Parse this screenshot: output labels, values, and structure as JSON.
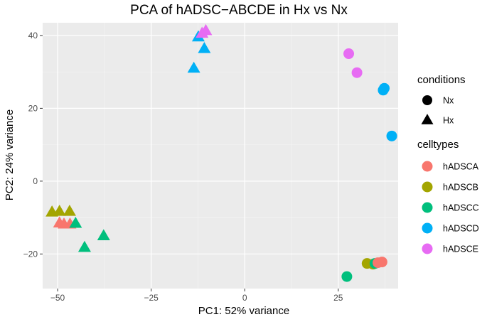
{
  "colors": {
    "panel": "#ebebeb",
    "grid_major": "#ffffff",
    "grid_minor": "#f6f6f6",
    "tick": "#333333",
    "legend_shape": "#000000"
  },
  "chart_data": {
    "type": "scatter",
    "title": "PCA of hADSC−ABCDE in Hx vs Nx",
    "xlabel": "PC1: 52% variance",
    "ylabel": "PC2: 24% variance",
    "xlim": [
      -54,
      41
    ],
    "ylim": [
      -29.5,
      43.5
    ],
    "xticks": [
      -50,
      -25,
      0,
      25
    ],
    "xtick_labels": [
      "−50",
      "−25",
      "0",
      "25"
    ],
    "yticks": [
      -20,
      0,
      20,
      40
    ],
    "ytick_labels": [
      "−20",
      "0",
      "20",
      "40"
    ],
    "legend_shape": {
      "title": "conditions",
      "entries": [
        {
          "label": "Nx",
          "shape": "circle"
        },
        {
          "label": "Hx",
          "shape": "triangle"
        }
      ]
    },
    "legend_color": {
      "title": "celltypes",
      "entries": [
        {
          "label": "hADSCA",
          "color": "#F8766D"
        },
        {
          "label": "hADSCB",
          "color": "#A3A500"
        },
        {
          "label": "hADSCC",
          "color": "#00BF7D"
        },
        {
          "label": "hADSCD",
          "color": "#00B0F6"
        },
        {
          "label": "hADSCE",
          "color": "#E76BF3"
        }
      ]
    },
    "points": [
      {
        "x": -51.5,
        "y": -8.5,
        "celltype": "hADSCB",
        "condition": "Hx"
      },
      {
        "x": -49.5,
        "y": -8.3,
        "celltype": "hADSCB",
        "condition": "Hx"
      },
      {
        "x": -46.8,
        "y": -8.3,
        "celltype": "hADSCB",
        "condition": "Hx"
      },
      {
        "x": -49.5,
        "y": -11.5,
        "celltype": "hADSCA",
        "condition": "Hx"
      },
      {
        "x": -48.3,
        "y": -11.8,
        "celltype": "hADSCA",
        "condition": "Hx"
      },
      {
        "x": -46.7,
        "y": -11.8,
        "celltype": "hADSCA",
        "condition": "Hx"
      },
      {
        "x": -45.2,
        "y": -11.6,
        "celltype": "hADSCC",
        "condition": "Hx"
      },
      {
        "x": -42.8,
        "y": -18.2,
        "celltype": "hADSCC",
        "condition": "Hx"
      },
      {
        "x": -37.7,
        "y": -15.0,
        "celltype": "hADSCC",
        "condition": "Hx"
      },
      {
        "x": -13.6,
        "y": 31.0,
        "celltype": "hADSCD",
        "condition": "Hx"
      },
      {
        "x": -12.4,
        "y": 39.6,
        "celltype": "hADSCD",
        "condition": "Hx"
      },
      {
        "x": -10.8,
        "y": 36.4,
        "celltype": "hADSCD",
        "condition": "Hx"
      },
      {
        "x": -11.4,
        "y": 40.6,
        "celltype": "hADSCE",
        "condition": "Hx"
      },
      {
        "x": -10.4,
        "y": 41.3,
        "celltype": "hADSCE",
        "condition": "Hx"
      },
      {
        "x": 27.8,
        "y": 35.0,
        "celltype": "hADSCE",
        "condition": "Nx"
      },
      {
        "x": 30.0,
        "y": 29.8,
        "celltype": "hADSCE",
        "condition": "Nx"
      },
      {
        "x": 37.0,
        "y": 25.0,
        "celltype": "hADSCD",
        "condition": "Nx"
      },
      {
        "x": 37.3,
        "y": 25.5,
        "celltype": "hADSCD",
        "condition": "Nx"
      },
      {
        "x": 39.3,
        "y": 12.4,
        "celltype": "hADSCD",
        "condition": "Nx"
      },
      {
        "x": 27.3,
        "y": -26.2,
        "celltype": "hADSCC",
        "condition": "Nx"
      },
      {
        "x": 32.7,
        "y": -22.6,
        "celltype": "hADSCB",
        "condition": "Nx"
      },
      {
        "x": 34.3,
        "y": -22.8,
        "celltype": "hADSCB",
        "condition": "Nx"
      },
      {
        "x": 34.8,
        "y": -22.6,
        "celltype": "hADSCC",
        "condition": "Nx"
      },
      {
        "x": 35.6,
        "y": -22.4,
        "celltype": "hADSCA",
        "condition": "Nx"
      },
      {
        "x": 36.7,
        "y": -22.2,
        "celltype": "hADSCA",
        "condition": "Nx"
      }
    ]
  }
}
